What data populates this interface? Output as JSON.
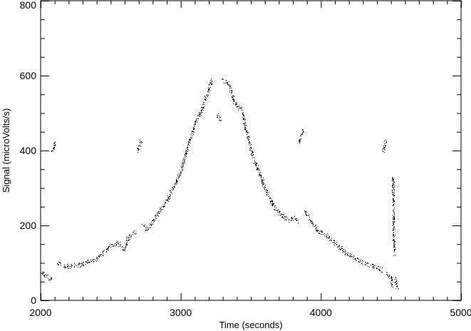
{
  "chart_data": {
    "type": "scatter",
    "title": "",
    "xlabel": "Time (seconds)",
    "ylabel": "Signal (microVolts/s)",
    "xlim": [
      2000,
      5000
    ],
    "ylim": [
      0,
      800
    ],
    "x_ticks": [
      2000,
      3000,
      4000,
      5000
    ],
    "x_tick_labels": [
      "2000",
      "3000",
      "4000",
      "5000"
    ],
    "y_ticks": [
      0,
      200,
      400,
      600,
      800
    ],
    "y_tick_labels": [
      "0",
      "200",
      "400",
      "600",
      "800"
    ],
    "x_minor_step": 100,
    "y_minor_step": 50,
    "grid": false,
    "marker_color": "#000000",
    "segments": [
      {
        "points": [
          [
            2000,
            80
          ],
          [
            2020,
            70
          ],
          [
            2050,
            62
          ],
          [
            2076,
            55
          ]
        ]
      },
      {
        "points": [
          [
            2080,
            400
          ],
          [
            2095,
            412
          ],
          [
            2105,
            425
          ]
        ]
      },
      {
        "points": [
          [
            2117,
            103
          ],
          [
            2150,
            95
          ],
          [
            2200,
            91
          ],
          [
            2300,
            97
          ],
          [
            2400,
            112
          ],
          [
            2450,
            128
          ],
          [
            2500,
            148
          ],
          [
            2550,
            155
          ],
          [
            2600,
            135
          ],
          [
            2620,
            165
          ],
          [
            2680,
            185
          ]
        ]
      },
      {
        "points": [
          [
            2690,
            400
          ],
          [
            2700,
            412
          ],
          [
            2715,
            425
          ]
        ]
      },
      {
        "points": [
          [
            2726,
            202
          ],
          [
            2760,
            190
          ],
          [
            2802,
            211
          ],
          [
            2850,
            240
          ],
          [
            2904,
            268
          ],
          [
            2950,
            305
          ],
          [
            3000,
            345
          ],
          [
            3056,
            421
          ],
          [
            3107,
            478
          ],
          [
            3157,
            516
          ],
          [
            3198,
            564
          ],
          [
            3223,
            592
          ]
        ]
      },
      {
        "points": [
          [
            3259,
            497
          ],
          [
            3270,
            488
          ],
          [
            3284,
            482
          ]
        ]
      },
      {
        "points": [
          [
            3300,
            589
          ],
          [
            3335,
            583
          ],
          [
            3386,
            526
          ],
          [
            3437,
            506
          ],
          [
            3462,
            459
          ],
          [
            3513,
            383
          ],
          [
            3563,
            335
          ],
          [
            3614,
            288
          ],
          [
            3665,
            250
          ],
          [
            3716,
            230
          ],
          [
            3766,
            215
          ],
          [
            3817,
            221
          ],
          [
            3830,
            210
          ]
        ]
      },
      {
        "points": [
          [
            3843,
            426
          ],
          [
            3858,
            440
          ],
          [
            3873,
            455
          ]
        ]
      },
      {
        "points": [
          [
            3883,
            240
          ],
          [
            3944,
            202
          ],
          [
            3985,
            183
          ],
          [
            4020,
            180
          ],
          [
            4096,
            154
          ],
          [
            4198,
            122
          ],
          [
            4299,
            101
          ],
          [
            4401,
            88
          ],
          [
            4437,
            80
          ]
        ]
      },
      {
        "points": [
          [
            4442,
            398
          ],
          [
            4452,
            410
          ],
          [
            4462,
            425
          ]
        ]
      },
      {
        "points": [
          [
            4467,
            72
          ],
          [
            4485,
            66
          ],
          [
            4503,
            59
          ],
          [
            4505,
            40
          ]
        ]
      },
      {
        "points": [
          [
            4528,
            59
          ],
          [
            4535,
            45
          ],
          [
            4543,
            30
          ]
        ]
      },
      {
        "points": [
          [
            4513,
            327
          ],
          [
            4516,
            250
          ],
          [
            4518,
            190
          ],
          [
            4520,
            160
          ],
          [
            4523,
            126
          ]
        ]
      }
    ]
  }
}
